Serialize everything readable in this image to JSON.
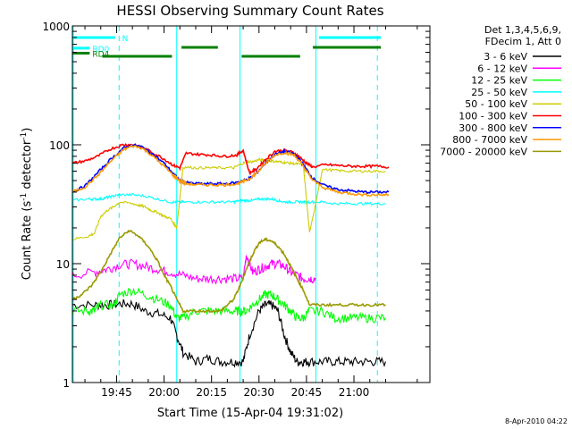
{
  "chart_data": {
    "type": "line",
    "title": "HESSI Observing Summary Count Rates",
    "xlabel": "Start Time (15-Apr-04 19:31:02)",
    "ylabel_main": "Count Rate (s",
    "ylabel_sup1": "-1",
    "ylabel_mid": " detector",
    "ylabel_sup2": "-1",
    "ylabel_end": ")",
    "yscale": "log",
    "ylim": [
      1,
      1000
    ],
    "xlim_minutes": [
      19.5167,
      21.4
    ],
    "xlim_hhmm": [
      "19:31",
      "21:24"
    ],
    "x_ticks": [
      {
        "label": "19:45",
        "minutes": 45
      },
      {
        "label": "20:00",
        "minutes": 60
      },
      {
        "label": "20:15",
        "minutes": 75
      },
      {
        "label": "20:30",
        "minutes": 90
      },
      {
        "label": "20:45",
        "minutes": 105
      },
      {
        "label": "21:00",
        "minutes": 120
      }
    ],
    "y_ticks": [
      {
        "label": "1",
        "value": 1
      },
      {
        "label": "10",
        "value": 10
      },
      {
        "label": "100",
        "value": 100
      },
      {
        "label": "1000",
        "value": 1000
      }
    ],
    "legend": {
      "placement": "right",
      "header": [
        "Det 1,3,4,5,6,9,",
        "FDecim 1, Att 0"
      ]
    },
    "series": [
      {
        "name": "3 - 6 keV",
        "color": "#000000",
        "x": [
          31,
          38,
          42,
          46,
          50,
          54,
          58,
          62,
          64,
          66,
          70,
          74,
          78,
          82,
          85,
          87,
          90,
          92,
          94,
          96,
          98,
          100,
          102,
          104,
          106,
          110,
          114,
          118,
          122,
          126,
          130
        ],
        "y": [
          4.5,
          4.5,
          4.5,
          4.6,
          4.6,
          4.0,
          3.8,
          3.5,
          2.5,
          1.8,
          1.5,
          1.6,
          1.5,
          1.5,
          1.5,
          2.5,
          4.0,
          4.5,
          4.5,
          4.0,
          2.5,
          1.8,
          1.5,
          1.5,
          1.5,
          1.5,
          1.5,
          1.5,
          1.5,
          1.5,
          1.5
        ]
      },
      {
        "name": "6 - 12 keV",
        "color": "#ff00ff",
        "x": [
          31,
          38,
          42,
          46,
          50,
          54,
          58,
          62,
          66,
          70,
          74,
          78,
          82,
          85,
          86,
          88,
          90,
          92,
          94,
          96,
          98,
          100,
          102,
          104,
          106,
          108
        ],
        "y": [
          8.0,
          8.5,
          9.0,
          9.8,
          10.0,
          9.5,
          9.0,
          8.5,
          8.0,
          7.5,
          7.5,
          7.5,
          7.5,
          7.5,
          12.0,
          8.5,
          9.0,
          9.5,
          10.0,
          10.0,
          9.5,
          8.5,
          8.0,
          7.5,
          7.5,
          7.5
        ]
      },
      {
        "name": "12 - 25 keV",
        "color": "#00ff00",
        "x": [
          31,
          36,
          38,
          40,
          44,
          46,
          50,
          54,
          58,
          62,
          64,
          66,
          70,
          74,
          78,
          82,
          84,
          86,
          88,
          90,
          92,
          94,
          96,
          98,
          100,
          102,
          104,
          106,
          110,
          114,
          118,
          122,
          126,
          130
        ],
        "y": [
          4.0,
          4.0,
          4.0,
          4.5,
          4.5,
          5.5,
          6.0,
          5.5,
          5.0,
          4.5,
          3.5,
          3.5,
          4.0,
          4.0,
          4.0,
          4.0,
          4.0,
          4.0,
          4.5,
          5.0,
          5.5,
          5.5,
          5.0,
          4.5,
          4.0,
          3.5,
          3.5,
          4.0,
          4.0,
          3.5,
          3.5,
          3.5,
          3.5,
          3.5
        ]
      },
      {
        "name": "25 - 50 keV",
        "color": "#00ffff",
        "x": [
          31,
          36,
          38,
          40,
          42,
          44,
          46,
          50,
          54,
          58,
          62,
          64,
          66,
          70,
          74,
          78,
          82,
          84,
          86,
          88,
          90,
          92,
          94,
          96,
          98,
          100,
          102,
          104,
          106,
          110,
          114,
          118,
          122,
          126,
          130
        ],
        "y": [
          34,
          35,
          35,
          35,
          36,
          37,
          38,
          38,
          37,
          35,
          33,
          33,
          33,
          33,
          33,
          33,
          33,
          34,
          34,
          34,
          35,
          35,
          35,
          34,
          33,
          33,
          33,
          33,
          33,
          33,
          32,
          32,
          32,
          32,
          32
        ]
      },
      {
        "name": "50 - 100 keV",
        "color": "#cccc00",
        "x": [
          31,
          36,
          38,
          40,
          42,
          44,
          46,
          50,
          52,
          54,
          56,
          58,
          60,
          62,
          64,
          66,
          70,
          74,
          78,
          82,
          84,
          86,
          88,
          90,
          92,
          94,
          96,
          98,
          100,
          102,
          104,
          106,
          110,
          114,
          118,
          122,
          126,
          130
        ],
        "y": [
          16,
          17,
          18,
          25,
          28,
          30,
          33,
          32,
          31,
          30,
          28,
          27,
          25,
          24,
          20,
          65,
          64,
          64,
          64,
          64,
          68,
          72,
          72,
          75,
          74,
          73,
          72,
          71,
          70,
          69,
          68,
          18,
          62,
          61,
          60,
          60,
          60,
          60
        ]
      },
      {
        "name": "100 - 300 keV",
        "color": "#ff0000",
        "x": [
          31,
          35,
          39,
          43,
          47,
          50,
          53,
          56,
          60,
          63,
          65,
          67,
          71,
          75,
          79,
          83,
          85,
          87,
          89,
          92,
          95,
          98,
          101,
          103,
          105,
          107,
          111,
          115,
          119,
          123,
          127,
          131
        ],
        "y": [
          70,
          73,
          80,
          92,
          100,
          100,
          95,
          87,
          76,
          67,
          64,
          85,
          83,
          82,
          80,
          82,
          90,
          58,
          62,
          75,
          88,
          90,
          86,
          78,
          70,
          65,
          68,
          67,
          66,
          66,
          66,
          65
        ]
      },
      {
        "name": "300 - 800 keV",
        "color": "#0000ff",
        "x": [
          31,
          35,
          39,
          43,
          47,
          50,
          53,
          56,
          60,
          63,
          65,
          67,
          71,
          75,
          79,
          83,
          85,
          87,
          89,
          92,
          95,
          98,
          101,
          103,
          105,
          107,
          111,
          115,
          119,
          123,
          127,
          131
        ],
        "y": [
          40,
          45,
          58,
          75,
          93,
          100,
          96,
          85,
          70,
          57,
          50,
          48,
          47,
          47,
          47,
          48,
          50,
          52,
          57,
          70,
          83,
          88,
          84,
          74,
          62,
          52,
          45,
          42,
          41,
          40,
          40,
          40
        ]
      },
      {
        "name": "800 - 7000 keV",
        "color": "#ff9900",
        "x": [
          31,
          35,
          39,
          43,
          47,
          50,
          53,
          56,
          60,
          63,
          65,
          67,
          71,
          75,
          79,
          83,
          85,
          87,
          89,
          92,
          95,
          98,
          101,
          103,
          105,
          107,
          111,
          115,
          119,
          123,
          127,
          131
        ],
        "y": [
          40,
          44,
          55,
          72,
          90,
          98,
          94,
          82,
          66,
          55,
          50,
          47,
          46,
          46,
          46,
          47,
          49,
          52,
          57,
          69,
          82,
          86,
          82,
          72,
          60,
          50,
          43,
          40,
          39,
          38,
          38,
          38
        ]
      },
      {
        "name": "7000 - 20000 keV",
        "color": "#999900",
        "x": [
          31,
          34,
          37,
          40,
          43,
          46,
          49,
          52,
          55,
          58,
          60,
          62,
          64,
          66,
          70,
          74,
          78,
          80,
          82,
          84,
          86,
          88,
          90,
          92,
          94,
          96,
          98,
          100,
          102,
          104,
          106,
          110,
          114,
          118,
          122,
          126,
          130
        ],
        "y": [
          5.0,
          5.5,
          6.5,
          8.5,
          12.0,
          16.5,
          19.0,
          17.0,
          14.0,
          10.5,
          8.0,
          6.5,
          5.0,
          4.0,
          4.0,
          4.0,
          4.0,
          4.5,
          5.0,
          6.5,
          9.0,
          12.0,
          15.0,
          16.0,
          15.5,
          14.0,
          12.0,
          9.5,
          7.5,
          6.0,
          4.5,
          4.5,
          4.5,
          4.5,
          4.5,
          4.5,
          4.5
        ]
      }
    ],
    "annotations": [
      {
        "label": "N",
        "color": "#00ffff",
        "x": [
          31.0,
          44.5
        ],
        "level": 798
      },
      {
        "label": "RD0",
        "color": "#00ffff",
        "x": [
          31.0,
          36.5
        ],
        "level": 650
      },
      {
        "label": "RD4",
        "color": "#008000",
        "x": [
          31.0,
          36.5
        ],
        "level": 590
      },
      {
        "label": "",
        "color": "#008000",
        "x": [
          40.5,
          62.5
        ],
        "level": 555
      },
      {
        "label": "",
        "color": "#008000",
        "x": [
          65.5,
          77.0
        ],
        "level": 660
      },
      {
        "label": "",
        "color": "#008000",
        "x": [
          84.5,
          103.0
        ],
        "level": 555
      },
      {
        "label": "",
        "color": "#008000",
        "x": [
          107.0,
          128.5
        ],
        "level": 660
      },
      {
        "label": "",
        "color": "#00ffff",
        "x": [
          109.0,
          128.5
        ],
        "level": 798
      }
    ],
    "vlines_solid": [
      31.3,
      64.0,
      84.0,
      108.0
    ],
    "vlines_dashed": [
      45.8,
      127.4
    ]
  },
  "footer": {
    "date": "8-Apr-2010 04:22"
  }
}
